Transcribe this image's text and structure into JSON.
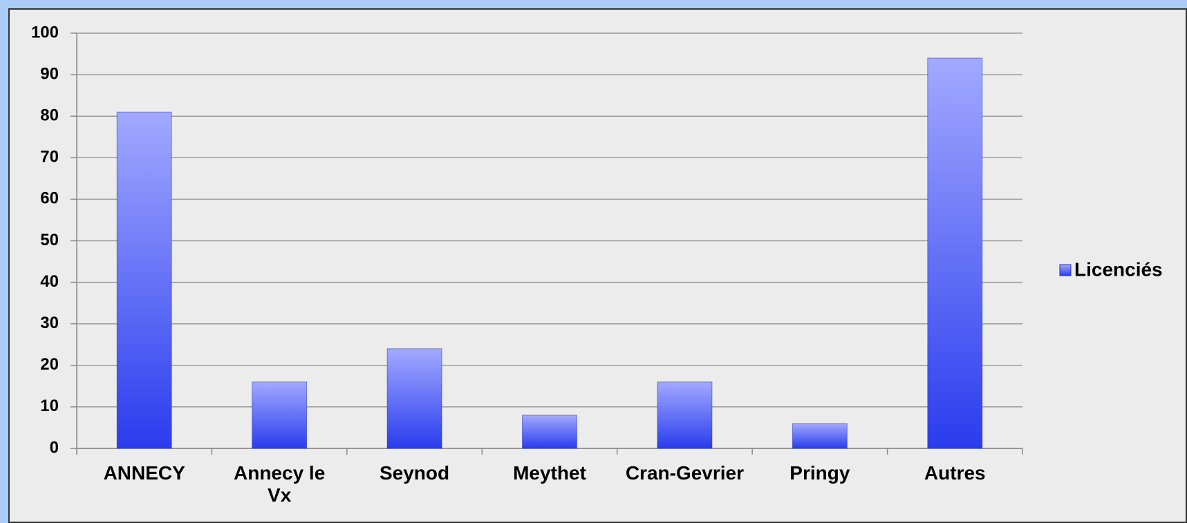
{
  "chart_data": {
    "type": "bar",
    "categories": [
      "ANNECY",
      "Annecy le Vx",
      "Seynod",
      "Meythet",
      "Cran-Gevrier",
      "Pringy",
      "Autres"
    ],
    "series": [
      {
        "name": "Licenciés",
        "color": "#3446f0",
        "values": [
          81,
          16,
          24,
          8,
          16,
          6,
          94
        ]
      }
    ],
    "ylim": [
      0,
      100
    ],
    "yticks": [
      0,
      10,
      20,
      30,
      40,
      50,
      60,
      70,
      80,
      90,
      100
    ],
    "grid": true,
    "legend": "right"
  }
}
